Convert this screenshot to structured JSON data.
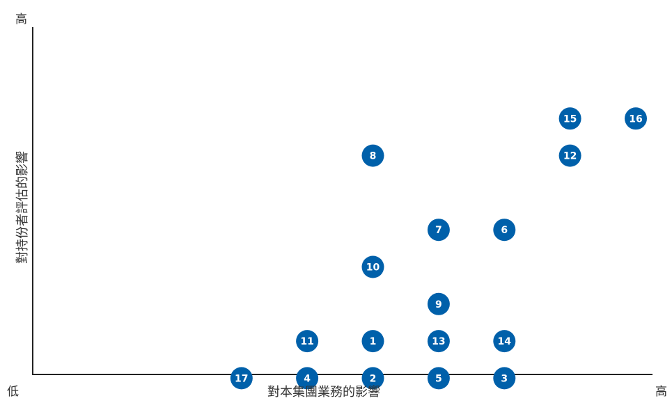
{
  "chart_data": {
    "type": "scatter",
    "title": "",
    "xlabel": "對本集團業務的影響",
    "ylabel": "對持份者評估的影響",
    "x_low_label": "低",
    "x_high_label": "高",
    "y_high_label": "高",
    "xlim": [
      0,
      10
    ],
    "ylim": [
      0,
      10
    ],
    "grid": false,
    "marker_color": "#0060AA",
    "marker_text_color": "#FFFFFF",
    "axis_color": "#222222",
    "points": [
      {
        "label": "1",
        "x": 5.0,
        "y": 3.0
      },
      {
        "label": "2",
        "x": 5.0,
        "y": 2.0
      },
      {
        "label": "3",
        "x": 7.5,
        "y": 2.0
      },
      {
        "label": "4",
        "x": 3.75,
        "y": 2.0
      },
      {
        "label": "5",
        "x": 6.25,
        "y": 2.0
      },
      {
        "label": "6",
        "x": 7.5,
        "y": 6.0
      },
      {
        "label": "7",
        "x": 6.25,
        "y": 6.0
      },
      {
        "label": "8",
        "x": 5.0,
        "y": 8.0
      },
      {
        "label": "9",
        "x": 6.25,
        "y": 4.0
      },
      {
        "label": "10",
        "x": 5.0,
        "y": 5.0
      },
      {
        "label": "11",
        "x": 3.75,
        "y": 3.0
      },
      {
        "label": "12",
        "x": 8.75,
        "y": 8.0
      },
      {
        "label": "13",
        "x": 6.25,
        "y": 3.0
      },
      {
        "label": "14",
        "x": 7.5,
        "y": 3.0
      },
      {
        "label": "15",
        "x": 8.75,
        "y": 9.0
      },
      {
        "label": "16",
        "x": 10.0,
        "y": 9.0
      },
      {
        "label": "17",
        "x": 2.5,
        "y": 2.0
      }
    ]
  }
}
